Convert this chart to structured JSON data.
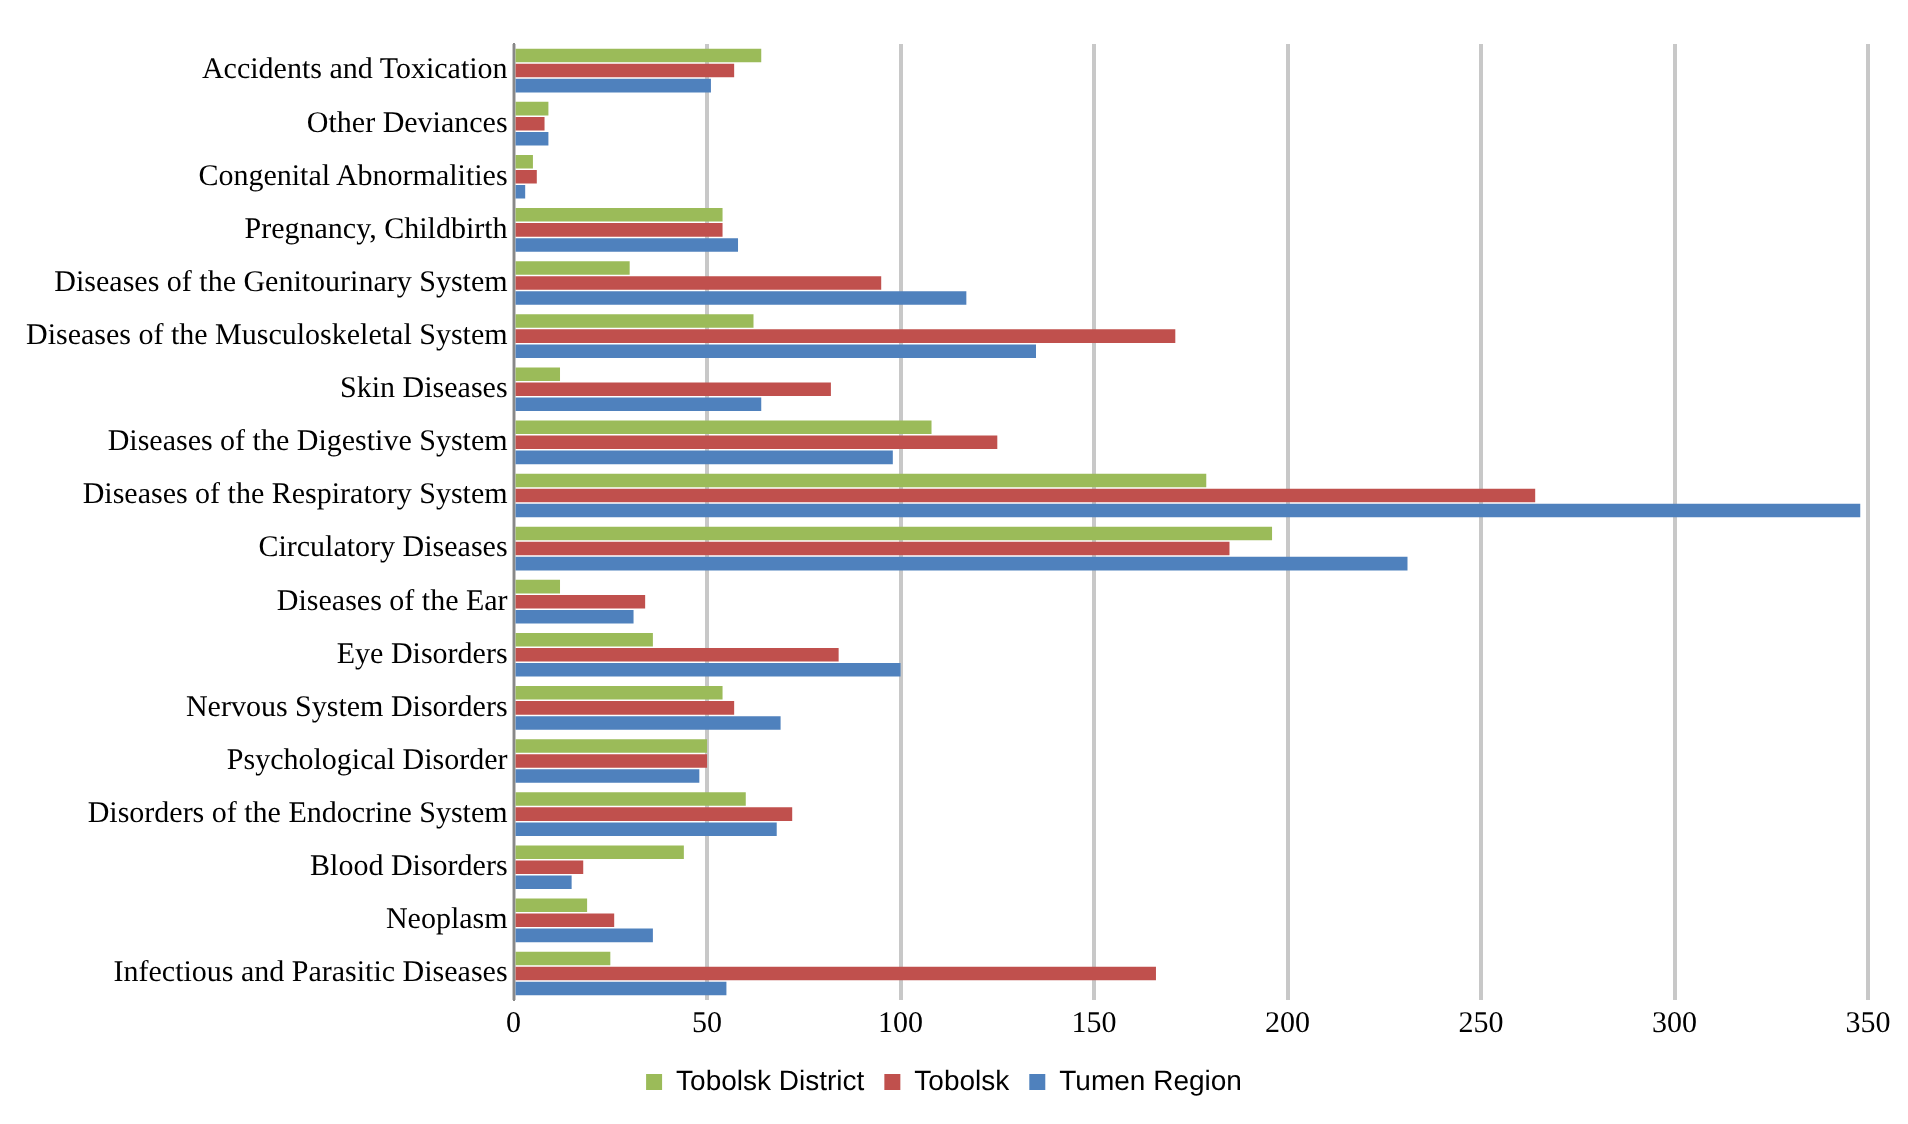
{
  "chart_data": {
    "type": "bar",
    "orientation": "horizontal",
    "categories": [
      "Accidents and Toxication",
      "Other Deviances",
      "Congenital Abnormalities",
      "Pregnancy, Childbirth",
      "Diseases of the Genitourinary System",
      "Diseases of the Musculoskeletal System",
      "Skin Diseases",
      "Diseases of the Digestive System",
      "Diseases of the Respiratory System",
      "Circulatory Diseases",
      "Diseases of the Ear",
      "Eye Disorders",
      "Nervous System Disorders",
      "Psychological Disorder",
      "Disorders of the Endocrine System",
      "Blood Disorders",
      "Neoplasm",
      "Infectious and Parasitic Diseases"
    ],
    "series": [
      {
        "name": "Tobolsk District",
        "color": "#9bbb59",
        "values": [
          64,
          9,
          5,
          54,
          30,
          62,
          12,
          108,
          179,
          196,
          12,
          36,
          54,
          50,
          60,
          44,
          19,
          25
        ]
      },
      {
        "name": "Tobolsk",
        "color": "#c0504d",
        "values": [
          57,
          8,
          6,
          54,
          95,
          171,
          82,
          125,
          264,
          185,
          34,
          84,
          57,
          50,
          72,
          18,
          26,
          166
        ]
      },
      {
        "name": "Tumen Region",
        "color": "#4f81bd",
        "values": [
          51,
          9,
          3,
          58,
          117,
          135,
          64,
          98,
          348,
          231,
          31,
          100,
          69,
          48,
          68,
          15,
          36,
          55
        ]
      }
    ],
    "xlim": [
      0,
      350
    ],
    "xticks": [
      0,
      50,
      100,
      150,
      200,
      250,
      300,
      350
    ],
    "grid": "x",
    "legend": "bottom"
  }
}
